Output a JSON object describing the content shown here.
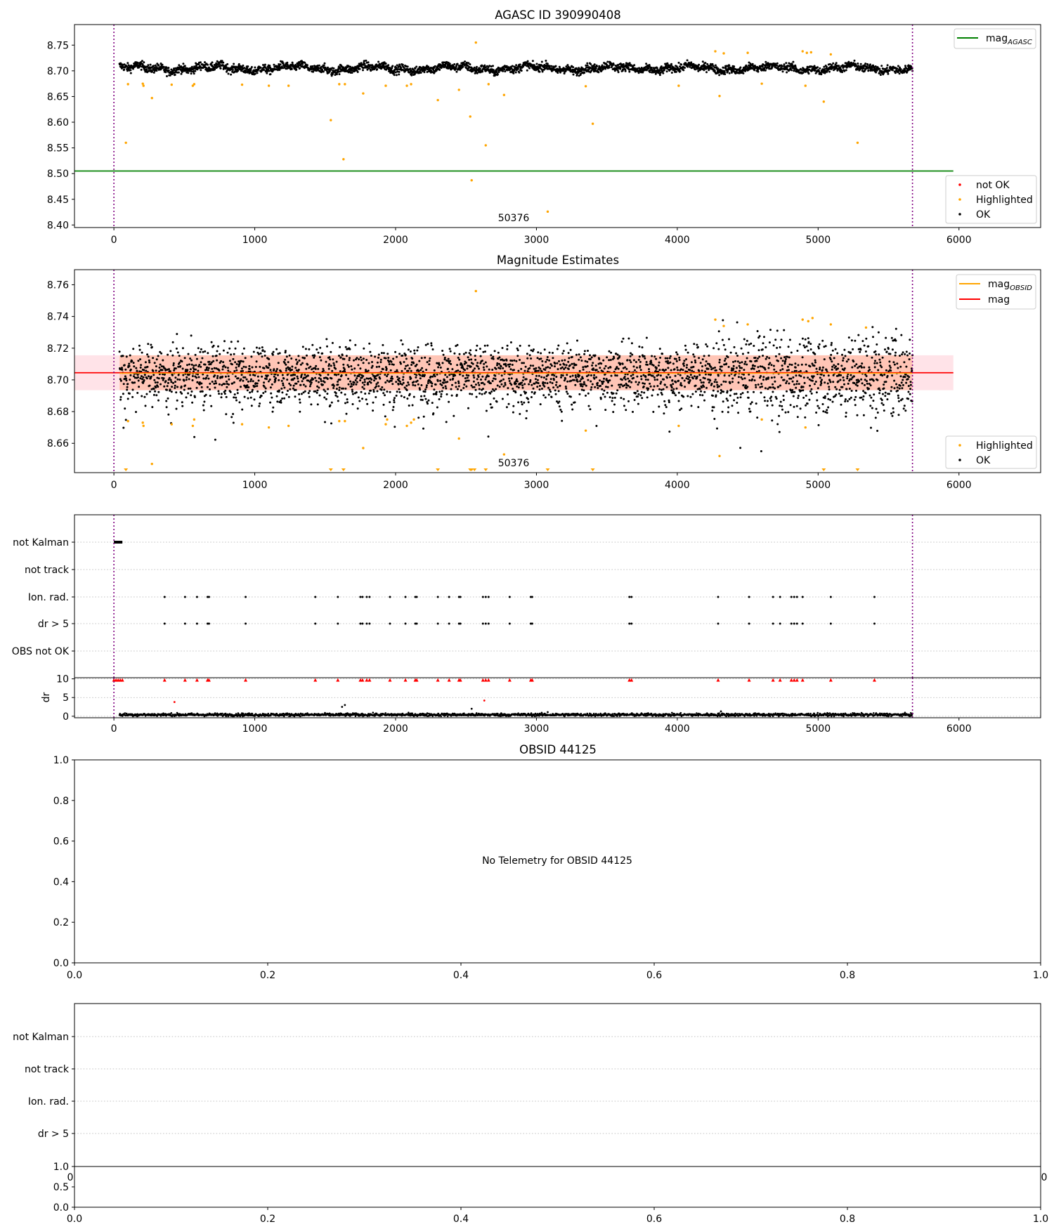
{
  "figure": {
    "annotation_obs_label": "50376",
    "chart_data": [
      {
        "id": "agasc",
        "type": "scatter",
        "title": "AGASC ID 390990408",
        "xlabel": "",
        "ylabel": "",
        "xlim": [
          -280,
          6580
        ],
        "ylim": [
          8.395,
          8.79
        ],
        "xticks": [
          0,
          1000,
          2000,
          3000,
          4000,
          5000,
          6000
        ],
        "yticks": [
          8.4,
          8.45,
          8.5,
          8.55,
          8.6,
          8.65,
          8.7,
          8.75
        ],
        "ytick_labels": [
          "8.40",
          "8.45",
          "8.50",
          "8.55",
          "8.60",
          "8.65",
          "8.70",
          "8.75"
        ],
        "grid": false,
        "vlines": [
          0,
          5670
        ],
        "annotation": {
          "x": 2840,
          "y": 8.407,
          "text": "50376"
        },
        "mag_agasc": {
          "value": 8.505,
          "x_range": [
            -280,
            5960
          ],
          "color": "#008000"
        },
        "ok_series": {
          "name": "OK",
          "color": "#000000",
          "x_range": [
            40,
            5670
          ],
          "n_points": 2800,
          "center": 8.705,
          "spread": 0.009
        },
        "highlighted": {
          "name": "Highlighted",
          "color": "#FFA500",
          "points": [
            [
              85,
              8.56
            ],
            [
              100,
              8.674
            ],
            [
              205,
              8.675
            ],
            [
              210,
              8.671
            ],
            [
              270,
              8.647
            ],
            [
              410,
              8.673
            ],
            [
              560,
              8.671
            ],
            [
              570,
              8.674
            ],
            [
              910,
              8.673
            ],
            [
              1100,
              8.671
            ],
            [
              1240,
              8.671
            ],
            [
              1540,
              8.604
            ],
            [
              1600,
              8.674
            ],
            [
              1640,
              8.674
            ],
            [
              1630,
              8.528
            ],
            [
              1770,
              8.656
            ],
            [
              1930,
              8.671
            ],
            [
              2080,
              8.671
            ],
            [
              2110,
              8.674
            ],
            [
              2300,
              8.643
            ],
            [
              2450,
              8.663
            ],
            [
              2530,
              8.611
            ],
            [
              2540,
              8.487
            ],
            [
              2570,
              8.755
            ],
            [
              2640,
              8.555
            ],
            [
              2660,
              8.674
            ],
            [
              2770,
              8.653
            ],
            [
              3080,
              8.426
            ],
            [
              3400,
              8.597
            ],
            [
              3350,
              8.67
            ],
            [
              4010,
              8.671
            ],
            [
              4270,
              8.738
            ],
            [
              4300,
              8.651
            ],
            [
              4330,
              8.734
            ],
            [
              4500,
              8.735
            ],
            [
              4600,
              8.675
            ],
            [
              4890,
              8.738
            ],
            [
              4910,
              8.671
            ],
            [
              4920,
              8.735
            ],
            [
              4950,
              8.736
            ],
            [
              5040,
              8.64
            ],
            [
              5090,
              8.732
            ],
            [
              5280,
              8.56
            ]
          ]
        },
        "legend_top": {
          "entries": [
            "mag$_{AGASC}$"
          ],
          "label_main": "mag",
          "label_sub": "AGASC",
          "position": "upper right"
        },
        "legend_bottom": {
          "entries": [
            "not OK",
            "Highlighted",
            "OK"
          ],
          "position": "lower right",
          "colors": [
            "#FF0000",
            "#FFA500",
            "#000000"
          ]
        }
      },
      {
        "id": "mag_estimates",
        "type": "scatter",
        "title": "Magnitude Estimates",
        "xlabel": "",
        "ylabel": "",
        "xlim": [
          -280,
          6580
        ],
        "ylim": [
          8.6415,
          8.7695
        ],
        "xticks": [
          0,
          1000,
          2000,
          3000,
          4000,
          5000,
          6000
        ],
        "yticks": [
          8.66,
          8.68,
          8.7,
          8.72,
          8.74,
          8.76
        ],
        "ytick_labels": [
          "8.66",
          "8.68",
          "8.70",
          "8.72",
          "8.74",
          "8.76"
        ],
        "grid": false,
        "vlines": [
          0,
          5670
        ],
        "annotation": {
          "x": 2840,
          "y": 8.6455,
          "text": "50376"
        },
        "mag": {
          "value": 8.7045,
          "x_range": [
            -280,
            5960
          ],
          "color": "#FF0000"
        },
        "band_outer": {
          "low": 8.6935,
          "high": 8.7155,
          "x_range": [
            -280,
            5960
          ],
          "color": "#FFC0CB"
        },
        "band_inner": {
          "low": 8.6935,
          "high": 8.7155,
          "x_range": [
            40,
            5670
          ],
          "color": "#FFA07A"
        },
        "ok_series": {
          "name": "OK",
          "color": "#000000",
          "x_range": [
            40,
            5670
          ],
          "n_points": 3000,
          "center": 8.704,
          "spread": 0.009
        },
        "highlighted": {
          "name": "Highlighted",
          "color": "#FFA500",
          "points": [
            [
              100,
              8.674
            ],
            [
              205,
              8.673
            ],
            [
              210,
              8.671
            ],
            [
              270,
              8.647
            ],
            [
              410,
              8.672
            ],
            [
              560,
              8.671
            ],
            [
              570,
              8.675
            ],
            [
              910,
              8.672
            ],
            [
              1100,
              8.67
            ],
            [
              1240,
              8.671
            ],
            [
              1600,
              8.674
            ],
            [
              1640,
              8.674
            ],
            [
              1770,
              8.657
            ],
            [
              1930,
              8.672
            ],
            [
              1940,
              8.675
            ],
            [
              2080,
              8.671
            ],
            [
              2110,
              8.673
            ],
            [
              2130,
              8.675
            ],
            [
              2450,
              8.663
            ],
            [
              2570,
              8.756
            ],
            [
              2770,
              8.653
            ],
            [
              3350,
              8.668
            ],
            [
              4010,
              8.671
            ],
            [
              4270,
              8.738
            ],
            [
              4300,
              8.652
            ],
            [
              4330,
              8.734
            ],
            [
              4500,
              8.735
            ],
            [
              4600,
              8.675
            ],
            [
              4890,
              8.738
            ],
            [
              4910,
              8.67
            ],
            [
              4930,
              8.737
            ],
            [
              4960,
              8.739
            ],
            [
              5090,
              8.735
            ],
            [
              5340,
              8.733
            ]
          ]
        },
        "below_range_markers": [
          85,
          1540,
          1630,
          2300,
          2530,
          2540,
          2560,
          2640,
          3080,
          3400,
          5040,
          5280
        ],
        "legend_top": {
          "entries": [
            "mag$_{OBSID}$",
            "mag"
          ],
          "label_main": "mag",
          "label_sub": "OBSID",
          "label_mag": "mag",
          "colors": [
            "#FFA500",
            "#FF0000"
          ],
          "position": "upper right"
        },
        "legend_bottom": {
          "entries": [
            "Highlighted",
            "OK"
          ],
          "colors": [
            "#FFA500",
            "#000000"
          ],
          "position": "lower right"
        }
      },
      {
        "id": "flags",
        "type": "scatter",
        "title": "",
        "xlim": [
          -280,
          6580
        ],
        "categories": [
          "not Kalman",
          "not track",
          "Ion. rad.",
          "dr > 5",
          "OBS not OK"
        ],
        "grid": true,
        "vlines": [
          0,
          5670
        ],
        "not_kalman_range": [
          0,
          60
        ],
        "ion_rad_x": [
          360,
          505,
          590,
          665,
          675,
          935,
          1430,
          1590,
          1750,
          1765,
          1795,
          1815,
          1960,
          2070,
          2140,
          2150,
          2300,
          2380,
          2450,
          2460,
          2620,
          2640,
          2660,
          2810,
          2960,
          2970,
          3660,
          3675,
          4290,
          4510,
          4680,
          4730,
          4810,
          4830,
          4850,
          4890,
          5090,
          5400
        ]
      },
      {
        "id": "dr",
        "type": "scatter",
        "title": "",
        "xlabel": "",
        "ylabel": "dr",
        "xlim": [
          -280,
          6580
        ],
        "ylim": [
          -0.4,
          10.3
        ],
        "xticks": [
          0,
          1000,
          2000,
          3000,
          4000,
          5000,
          6000
        ],
        "yticks": [
          0,
          5,
          10
        ],
        "ytick_labels": [
          "0",
          "5",
          "10"
        ],
        "grid": true,
        "vlines": [
          0,
          5670
        ],
        "ok_series": {
          "name": "OK",
          "color": "#000000",
          "x_range": [
            40,
            5670
          ],
          "n_points": 1900,
          "center": 0.4,
          "spread": 0.2
        },
        "outliers": [
          [
            430,
            3.8
          ],
          [
            1620,
            2.5
          ],
          [
            1640,
            3.0
          ],
          [
            2540,
            2.0
          ],
          [
            2630,
            4.2
          ],
          [
            3080,
            1.1
          ],
          [
            4310,
            1.3
          ]
        ],
        "capped_x_extra": [
          0,
          15,
          30,
          45,
          60
        ]
      },
      {
        "id": "obsid",
        "type": "scatter",
        "title": "OBSID 44125",
        "message": "No Telemetry for OBSID 44125",
        "xlim": [
          0,
          1
        ],
        "ylim": [
          0,
          1
        ],
        "xticks": [
          0,
          0.2,
          0.4,
          0.6,
          0.8,
          1.0
        ],
        "xtick_labels": [
          "0.0",
          "0.2",
          "0.4",
          "0.6",
          "0.8",
          "1.0"
        ],
        "yticks": [
          0,
          0.2,
          0.4,
          0.6,
          0.8,
          1.0
        ],
        "ytick_labels": [
          "0.0",
          "0.2",
          "0.4",
          "0.6",
          "0.8",
          "1.0"
        ],
        "grid": false
      },
      {
        "id": "flags2",
        "type": "scatter",
        "title": "",
        "categories": [
          "not Kalman",
          "not track",
          "Ion. rad.",
          "dr > 5"
        ],
        "grid": true,
        "xtick_labels_partial": [
          "0",
          "0"
        ]
      },
      {
        "id": "bottom",
        "type": "scatter",
        "title": "",
        "xlim": [
          0,
          1
        ],
        "ylim": [
          0,
          1
        ],
        "xticks": [
          0,
          0.2,
          0.4,
          0.6,
          0.8,
          1.0
        ],
        "xtick_labels": [
          "0.0",
          "0.2",
          "0.4",
          "0.6",
          "0.8",
          "1.0"
        ],
        "yticks": [
          0,
          0.5,
          1.0
        ],
        "ytick_labels": [
          "0.0",
          "0.5",
          "1.0"
        ],
        "grid": false
      }
    ]
  }
}
